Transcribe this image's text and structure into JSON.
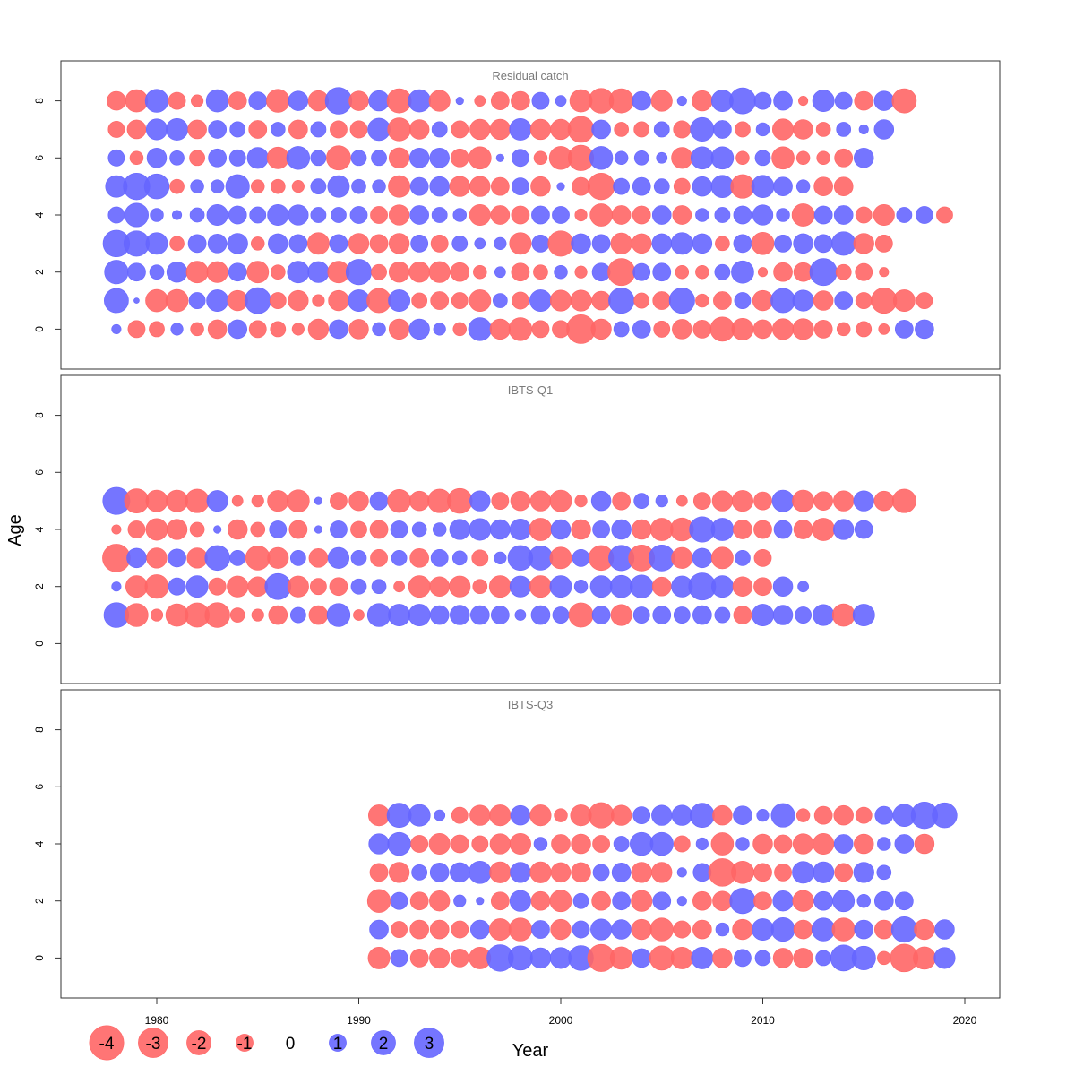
{
  "chart_data": {
    "type": "bubble",
    "xlabel": "Year",
    "ylabel": "Age",
    "xlim": [
      1973.1,
      2019.6
    ],
    "ylim": [
      -1.4,
      9.4
    ],
    "x_ticks": [
      1980,
      1990,
      2000,
      2010,
      2020
    ],
    "y_ticks": [
      0,
      2,
      4,
      6,
      8
    ],
    "colors": {
      "positive": "#6666ff",
      "negative": "#ff6666"
    },
    "legend": {
      "placement": "bottom-left",
      "items": [
        {
          "label": "-4",
          "value": -4
        },
        {
          "label": "-3",
          "value": -3
        },
        {
          "label": "-2",
          "value": -2
        },
        {
          "label": "-1",
          "value": -1
        },
        {
          "label": "0",
          "value": 0
        },
        {
          "label": "1",
          "value": 1
        },
        {
          "label": "2",
          "value": 2
        },
        {
          "label": "3",
          "value": 3
        }
      ]
    },
    "panels": [
      {
        "title": "Residual catch",
        "years": [
          1978,
          2018
        ],
        "ages": [
          0,
          1,
          2,
          3,
          4,
          5,
          6,
          7,
          8
        ],
        "residuals": {
          "0": [
            0.3,
            -1.0,
            -0.8,
            0.5,
            -0.6,
            -1.2,
            1.2,
            -1.0,
            -0.8,
            -0.5,
            -1.4,
            1.2,
            -1.3,
            0.6,
            -1.4,
            1.4,
            0.5,
            -0.6,
            1.8,
            -1.4,
            -1.8,
            -1.0,
            -1.0,
            -2.8,
            -1.4,
            0.8,
            1.1,
            -0.9,
            -1.3,
            -1.1,
            -2.0,
            -1.6,
            -1.2,
            -1.5,
            -1.5,
            -1.1,
            -0.6,
            -0.8,
            -0.4,
            1.1,
            1.2
          ],
          "1": [
            2.0,
            0.1,
            -1.7,
            -1.7,
            0.9,
            1.6,
            -1.4,
            2.3,
            -0.9,
            -1.4,
            -0.5,
            -1.4,
            1.6,
            -2.0,
            1.6,
            -0.8,
            -1.1,
            -0.9,
            -1.6,
            0.7,
            -1.0,
            1.6,
            -1.5,
            -1.5,
            -1.2,
            2.2,
            -0.8,
            -1.1,
            2.2,
            -0.6,
            -1.1,
            0.9,
            -1.4,
            2.0,
            1.5,
            -1.3,
            1.1,
            -0.9,
            -2.2,
            -1.6,
            -0.9
          ],
          "2": [
            1.9,
            1.1,
            0.7,
            1.4,
            -1.6,
            -1.5,
            1.1,
            -1.6,
            -0.7,
            1.6,
            1.5,
            -1.6,
            2.2,
            -0.8,
            -1.4,
            -1.4,
            -1.5,
            -1.2,
            -0.6,
            0.4,
            -1.1,
            -0.7,
            0.6,
            -0.5,
            1.1,
            -2.5,
            1.0,
            1.1,
            -0.6,
            -0.6,
            0.8,
            1.7,
            -0.3,
            -1.2,
            -1.2,
            2.5,
            -0.8,
            -1.0,
            -0.3
          ],
          "3": [
            2.4,
            2.2,
            1.6,
            -0.7,
            1.1,
            1.2,
            1.4,
            -0.6,
            1.3,
            1.1,
            -1.6,
            1.1,
            -1.4,
            -1.1,
            -1.4,
            1.0,
            -1.0,
            0.8,
            0.4,
            0.5,
            -1.6,
            1.0,
            -2.2,
            1.3,
            1.1,
            -1.5,
            -1.3,
            1.3,
            1.6,
            1.3,
            -0.7,
            1.1,
            -1.7,
            1.0,
            1.3,
            1.1,
            1.9,
            -1.4,
            -1.0
          ],
          "4": [
            0.9,
            1.9,
            0.6,
            0.3,
            0.7,
            1.5,
            1.1,
            0.9,
            1.5,
            1.4,
            0.8,
            0.8,
            1.0,
            -1.0,
            -1.4,
            1.2,
            0.8,
            0.6,
            -1.5,
            -1.2,
            -1.1,
            1.1,
            1.0,
            -0.5,
            -1.7,
            -1.2,
            -1.1,
            1.2,
            -1.2,
            0.6,
            0.8,
            1.1,
            1.4,
            0.6,
            -1.7,
            1.1,
            1.2,
            -0.9,
            -1.5,
            0.8,
            1.0,
            -0.9
          ],
          "5": [
            1.6,
            2.4,
            2.1,
            -0.7,
            0.6,
            0.6,
            1.9,
            -0.6,
            -0.7,
            -0.5,
            0.8,
            1.6,
            0.7,
            0.6,
            -1.6,
            1.1,
            1.3,
            -1.4,
            -1.4,
            -1.1,
            1.0,
            -1.3,
            0.2,
            -1.1,
            -2.4,
            0.9,
            1.1,
            0.8,
            -0.9,
            1.3,
            1.7,
            -1.9,
            1.7,
            1.2,
            0.6,
            -1.2,
            -1.2
          ],
          "6": [
            0.9,
            -0.6,
            1.3,
            0.7,
            -0.8,
            1.1,
            0.9,
            1.5,
            -1.6,
            1.8,
            0.8,
            -2.0,
            0.8,
            0.8,
            -1.4,
            1.3,
            1.3,
            -1.1,
            -1.7,
            0.2,
            1.0,
            -0.6,
            -1.8,
            -2.2,
            1.8,
            0.6,
            0.7,
            0.4,
            -1.5,
            1.7,
            1.7,
            -0.6,
            0.8,
            -1.7,
            -0.6,
            -0.6,
            -1.1,
            1.3
          ],
          "7": [
            -0.9,
            -1.2,
            1.5,
            1.6,
            -1.2,
            1.1,
            0.8,
            -1.1,
            0.7,
            -1.2,
            0.8,
            -1.0,
            -1.0,
            1.7,
            -1.8,
            -1.3,
            0.8,
            -1.0,
            -1.4,
            -1.4,
            1.6,
            -1.4,
            -1.4,
            -2.3,
            1.2,
            -0.7,
            -0.8,
            0.8,
            -1.0,
            1.9,
            1.1,
            -0.8,
            0.6,
            -1.5,
            -1.3,
            -0.7,
            0.7,
            0.3,
            1.3
          ],
          "8": [
            -1.2,
            -1.7,
            1.8,
            -1.0,
            -0.5,
            1.7,
            -1.1,
            1.1,
            -1.8,
            1.3,
            -1.4,
            2.4,
            -1.3,
            1.4,
            -2.0,
            1.7,
            -1.5,
            0.2,
            -0.4,
            -1.1,
            -1.2,
            1.0,
            0.4,
            -1.7,
            -2.1,
            -2.0,
            1.2,
            -1.5,
            0.3,
            -1.4,
            1.6,
            2.3,
            1.0,
            1.2,
            -0.3,
            1.6,
            1.0,
            -1.2,
            1.3,
            -2.0
          ]
        }
      },
      {
        "title": "IBTS-Q1",
        "years": [
          1978,
          2019
        ],
        "ages": [
          1,
          2,
          3,
          4,
          5
        ],
        "residuals": {
          "1": [
            2.1,
            -1.8,
            -0.5,
            -1.7,
            -2.0,
            -2.1,
            -0.7,
            -0.5,
            -1.2,
            0.8,
            -1.2,
            1.8,
            -0.4,
            1.8,
            1.6,
            1.6,
            1.2,
            1.3,
            1.2,
            1.1,
            0.4,
            1.2,
            0.9,
            -2.0,
            1.1,
            -1.5,
            0.9,
            1.1,
            0.9,
            1.2,
            0.8,
            -1.1,
            1.6,
            1.3,
            0.9,
            1.5,
            -1.7,
            1.6
          ],
          "2": [
            0.3,
            -1.6,
            -1.9,
            1.0,
            1.6,
            -1.0,
            -1.5,
            -1.3,
            2.3,
            -1.5,
            -0.9,
            -1.1,
            0.8,
            0.7,
            -0.4,
            -1.6,
            -1.3,
            -1.5,
            -0.7,
            -1.6,
            1.5,
            -1.6,
            1.6,
            0.6,
            1.6,
            1.7,
            1.8,
            -1.2,
            1.5,
            2.5,
            1.6,
            -1.3,
            -1.1,
            1.3,
            0.4
          ],
          "3": [
            -2.6,
            1.3,
            -1.4,
            1.1,
            -1.4,
            2.1,
            0.8,
            -2.0,
            -1.5,
            0.8,
            -1.2,
            1.5,
            0.8,
            -1.0,
            0.8,
            -1.2,
            1.0,
            0.7,
            -0.9,
            0.5,
            2.1,
            2.0,
            -1.6,
            1.0,
            -2.1,
            2.2,
            -2.3,
            2.3,
            -1.5,
            1.3,
            -1.6,
            0.8,
            -1.0
          ],
          "4": [
            -0.3,
            -1.0,
            -1.6,
            -1.4,
            -0.7,
            0.2,
            -1.3,
            -0.7,
            1.0,
            -1.1,
            0.2,
            1.0,
            -0.9,
            -1.1,
            1.0,
            0.7,
            0.6,
            1.4,
            1.6,
            1.3,
            1.5,
            -1.7,
            1.3,
            -1.3,
            1.0,
            1.3,
            -1.3,
            -1.7,
            -1.8,
            2.2,
            1.7,
            -1.2,
            -1.1,
            1.1,
            -1.2,
            -1.7,
            1.4,
            1.1
          ],
          "5": [
            2.5,
            -2.0,
            -1.6,
            -1.6,
            -1.9,
            1.5,
            -0.4,
            -0.5,
            -1.5,
            -1.7,
            0.2,
            -1.0,
            -1.3,
            1.1,
            -1.8,
            -1.3,
            -1.9,
            -2.1,
            1.4,
            -1.0,
            -1.3,
            -1.4,
            -1.6,
            -0.5,
            1.3,
            -1.1,
            0.8,
            0.5,
            -0.4,
            -1.0,
            -1.4,
            -1.5,
            -1.1,
            1.6,
            -1.6,
            -1.2,
            -1.4,
            1.4,
            -1.3,
            -1.9
          ]
        }
      },
      {
        "title": "IBTS-Q3",
        "years": [
          1991,
          2019
        ],
        "ages": [
          0,
          1,
          2,
          3,
          4,
          5
        ],
        "residuals": {
          "0": [
            -1.6,
            1.0,
            -1.1,
            -1.4,
            -1.1,
            -1.6,
            2.4,
            2.0,
            1.4,
            1.5,
            2.1,
            -2.5,
            -1.7,
            1.2,
            -2.0,
            -1.6,
            1.6,
            -1.3,
            1.0,
            0.8,
            -1.3,
            -1.3,
            0.8,
            2.3,
            1.9,
            -0.6,
            -2.6,
            -1.7,
            1.5
          ],
          "1": [
            1.2,
            -0.9,
            -1.2,
            -1.2,
            -1.0,
            1.2,
            -1.6,
            -1.8,
            1.1,
            -1.4,
            1.0,
            1.5,
            1.3,
            -1.4,
            -1.8,
            -1.0,
            -1.2,
            0.6,
            -1.4,
            1.6,
            1.9,
            -1.2,
            1.8,
            -1.8,
            1.2,
            -1.2,
            2.2,
            -1.4,
            1.3
          ],
          "2": [
            -1.8,
            1.0,
            -1.1,
            -1.4,
            0.5,
            0.2,
            -1.1,
            1.5,
            -1.2,
            -1.6,
            0.8,
            -1.2,
            1.1,
            -1.5,
            1.1,
            0.3,
            -1.2,
            -1.3,
            2.2,
            -1.1,
            1.4,
            -1.5,
            1.2,
            1.6,
            0.6,
            1.2,
            1.1
          ],
          "3": [
            -1.1,
            -1.4,
            0.8,
            1.2,
            1.3,
            1.7,
            -1.5,
            1.4,
            -1.5,
            -1.3,
            -1.3,
            0.9,
            1.2,
            -1.4,
            -1.4,
            0.3,
            1.1,
            -2.6,
            -1.7,
            -1.1,
            -1.0,
            1.6,
            1.5,
            -1.1,
            1.4,
            0.7
          ],
          "4": [
            1.4,
            1.8,
            -1.0,
            -1.5,
            -1.1,
            -0.9,
            -1.4,
            -1.5,
            0.6,
            -1.2,
            -1.3,
            -1.0,
            0.8,
            1.8,
            1.8,
            -0.9,
            0.5,
            -1.7,
            0.6,
            -1.3,
            -1.1,
            -1.4,
            -1.5,
            1.2,
            -1.3,
            0.6,
            1.2,
            -1.3
          ],
          "5": [
            -1.5,
            2.0,
            1.6,
            0.4,
            -0.9,
            -1.4,
            -1.5,
            1.3,
            -1.5,
            -0.6,
            -1.5,
            -2.2,
            -1.4,
            1.0,
            1.4,
            1.4,
            2.0,
            -1.3,
            1.2,
            0.5,
            1.9,
            -0.6,
            -1.1,
            -1.3,
            -0.9,
            1.1,
            1.7,
            2.4,
            2.1
          ]
        }
      }
    ]
  }
}
